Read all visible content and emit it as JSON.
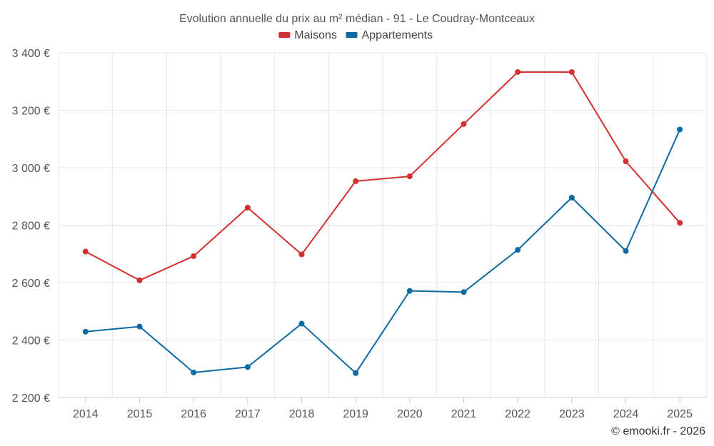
{
  "chart_data": {
    "type": "line",
    "title": "Evolution annuelle du prix au m² médian - 91 - Le Coudray-Montceaux",
    "categories": [
      "2014",
      "2015",
      "2016",
      "2017",
      "2018",
      "2019",
      "2020",
      "2021",
      "2022",
      "2023",
      "2024",
      "2025"
    ],
    "series": [
      {
        "name": "Maisons",
        "color": "#d32f2f",
        "values": [
          2708,
          2608,
          2692,
          2861,
          2698,
          2953,
          2970,
          3152,
          3333,
          3333,
          3022,
          2808
        ]
      },
      {
        "name": "Appartements",
        "color": "#0b6aa2",
        "values": [
          2429,
          2447,
          2287,
          2306,
          2457,
          2285,
          2571,
          2567,
          2714,
          2896,
          2710,
          3133
        ]
      }
    ],
    "ylim": [
      2200,
      3400
    ],
    "yticks": [
      2200,
      2400,
      2600,
      2800,
      3000,
      3200,
      3400
    ],
    "ytick_labels": [
      "2 200 €",
      "2 400 €",
      "2 600 €",
      "2 800 €",
      "3 000 €",
      "3 200 €",
      "3 400 €"
    ],
    "xlabel": "",
    "ylabel": "",
    "grid": true,
    "legend_position": "top-center"
  },
  "credit": "© emooki.fr - 2026"
}
